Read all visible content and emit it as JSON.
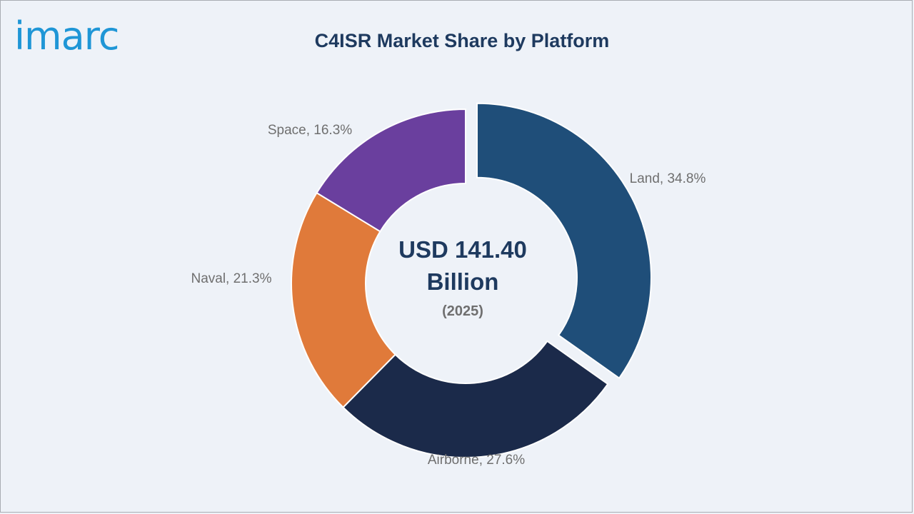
{
  "brand": {
    "logo_text": "imarc",
    "logo_color": "#1f96d6"
  },
  "chart_data": {
    "type": "pie",
    "title": "C4ISR Market Share by Platform",
    "donut": true,
    "exploded": "Land",
    "center_text": {
      "value": "USD 141.40",
      "unit": "Billion",
      "year": "(2025)"
    },
    "slices": [
      {
        "label": "Land",
        "value": 34.8,
        "display": "Land, 34.8%",
        "color": "#1f4e79"
      },
      {
        "label": "Airborne",
        "value": 27.6,
        "display": "Airborne, 27.6%",
        "color": "#1b2a4a"
      },
      {
        "label": "Naval",
        "value": 21.3,
        "display": "Naval, 21.3%",
        "color": "#e07a3a"
      },
      {
        "label": "Space",
        "value": 16.3,
        "display": "Space, 16.3%",
        "color": "#6a3f9e"
      }
    ]
  }
}
